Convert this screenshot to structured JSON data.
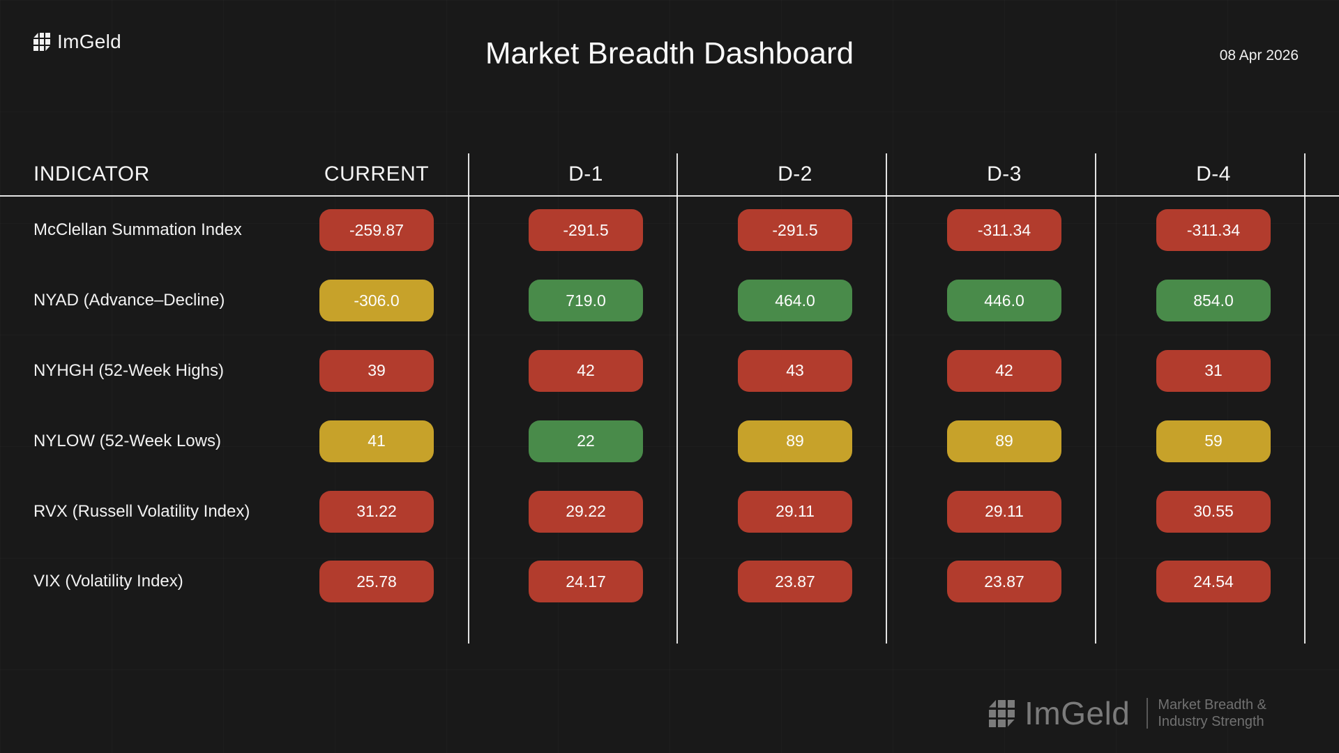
{
  "header": {
    "brand": "ImGeld",
    "title": "Market Breadth Dashboard",
    "date": "08 Apr 2026"
  },
  "table": {
    "columns": [
      "INDICATOR",
      "CURRENT",
      "D-1",
      "D-2",
      "D-3",
      "D-4"
    ],
    "rows": [
      {
        "label": "McClellan Summation Index",
        "values": [
          {
            "text": "-259.87",
            "status": "red"
          },
          {
            "text": "-291.5",
            "status": "red"
          },
          {
            "text": "-291.5",
            "status": "red"
          },
          {
            "text": "-311.34",
            "status": "red"
          },
          {
            "text": "-311.34",
            "status": "red"
          }
        ]
      },
      {
        "label": "NYAD (Advance–Decline)",
        "values": [
          {
            "text": "-306.0",
            "status": "gold"
          },
          {
            "text": "719.0",
            "status": "green"
          },
          {
            "text": "464.0",
            "status": "green"
          },
          {
            "text": "446.0",
            "status": "green"
          },
          {
            "text": "854.0",
            "status": "green"
          }
        ]
      },
      {
        "label": "NYHGH (52-Week Highs)",
        "values": [
          {
            "text": "39",
            "status": "red"
          },
          {
            "text": "42",
            "status": "red"
          },
          {
            "text": "43",
            "status": "red"
          },
          {
            "text": "42",
            "status": "red"
          },
          {
            "text": "31",
            "status": "red"
          }
        ]
      },
      {
        "label": "NYLOW (52-Week Lows)",
        "values": [
          {
            "text": "41",
            "status": "gold"
          },
          {
            "text": "22",
            "status": "green"
          },
          {
            "text": "89",
            "status": "gold"
          },
          {
            "text": "89",
            "status": "gold"
          },
          {
            "text": "59",
            "status": "gold"
          }
        ]
      },
      {
        "label": "RVX (Russell Volatility Index)",
        "values": [
          {
            "text": "31.22",
            "status": "red"
          },
          {
            "text": "29.22",
            "status": "red"
          },
          {
            "text": "29.11",
            "status": "red"
          },
          {
            "text": "29.11",
            "status": "red"
          },
          {
            "text": "30.55",
            "status": "red"
          }
        ]
      },
      {
        "label": "VIX (Volatility Index)",
        "values": [
          {
            "text": "25.78",
            "status": "red"
          },
          {
            "text": "24.17",
            "status": "red"
          },
          {
            "text": "23.87",
            "status": "red"
          },
          {
            "text": "23.87",
            "status": "red"
          },
          {
            "text": "24.54",
            "status": "red"
          }
        ]
      }
    ]
  },
  "footer": {
    "brand": "ImGeld",
    "tagline_line1": "Market Breadth &",
    "tagline_line2": "Industry Strength"
  },
  "colors": {
    "red": "#b23c2d",
    "gold": "#c7a22a",
    "green": "#498b4a",
    "background": "#191919"
  }
}
